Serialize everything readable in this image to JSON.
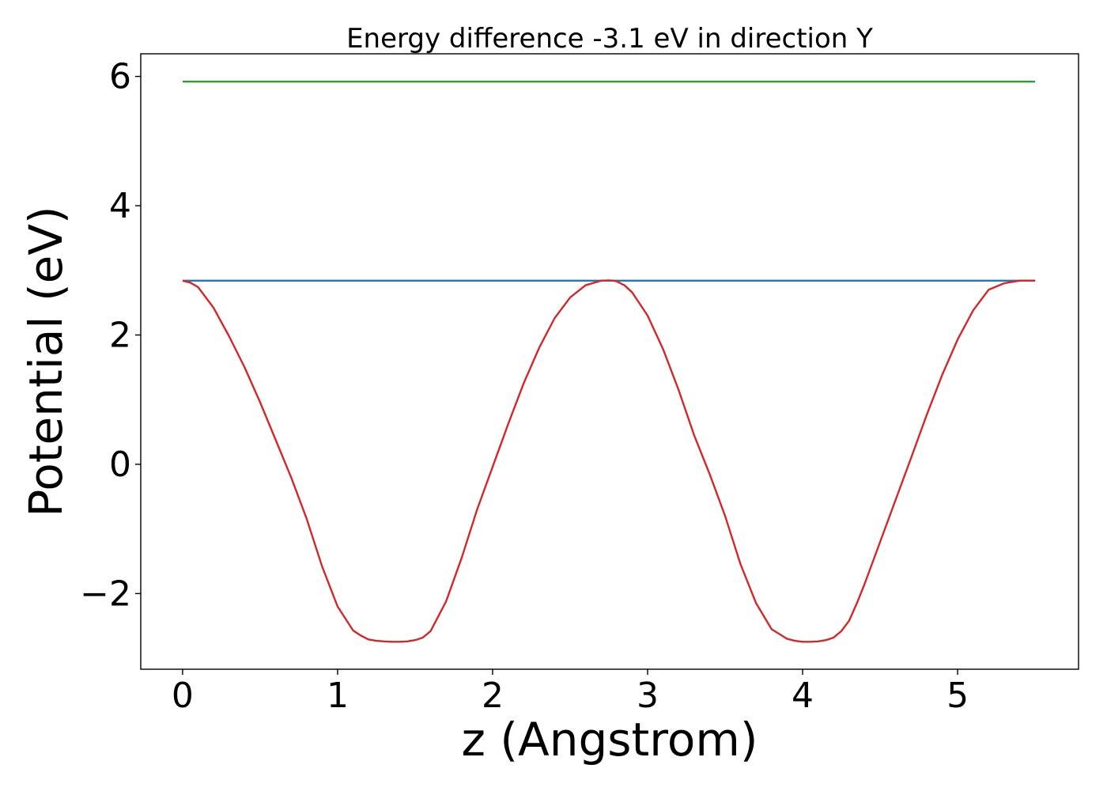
{
  "chart_data": {
    "type": "line",
    "title": "Energy difference -3.1 eV in direction Y",
    "xlabel": "z (Angstrom)",
    "ylabel": "Potential (eV)",
    "xlim": [
      -0.27,
      5.78
    ],
    "ylim": [
      -3.17,
      6.35
    ],
    "xticks": [
      0,
      1,
      2,
      3,
      4,
      5
    ],
    "xtick_labels": [
      "0",
      "1",
      "2",
      "3",
      "4",
      "5"
    ],
    "yticks": [
      -2,
      0,
      2,
      4,
      6
    ],
    "ytick_labels": [
      "−2",
      "0",
      "2",
      "4",
      "6"
    ],
    "grid": false,
    "series": [
      {
        "color": "#2ca02c",
        "x": [
          0,
          5.5
        ],
        "y": [
          5.92,
          5.92
        ]
      },
      {
        "color": "#1f77b4",
        "x": [
          0,
          5.5
        ],
        "y": [
          2.84,
          2.84
        ]
      },
      {
        "color": "#d62728",
        "x": [
          0,
          0.05,
          0.1,
          0.2,
          0.3,
          0.4,
          0.5,
          0.6,
          0.7,
          0.8,
          0.9,
          1.0,
          1.1,
          1.15,
          1.2,
          1.25,
          1.3,
          1.35,
          1.4,
          1.45,
          1.5,
          1.55,
          1.6,
          1.7,
          1.8,
          1.9,
          2.0,
          2.1,
          2.2,
          2.3,
          2.4,
          2.5,
          2.6,
          2.7,
          2.75,
          2.78,
          2.8,
          2.85,
          2.9,
          3.0,
          3.1,
          3.2,
          3.3,
          3.4,
          3.5,
          3.6,
          3.7,
          3.8,
          3.9,
          3.95,
          4.0,
          4.05,
          4.1,
          4.15,
          4.2,
          4.25,
          4.3,
          4.35,
          4.4,
          4.5,
          4.6,
          4.7,
          4.8,
          4.9,
          5.0,
          5.1,
          5.2,
          5.3,
          5.4,
          5.45,
          5.5
        ],
        "y": [
          2.84,
          2.81,
          2.74,
          2.42,
          1.98,
          1.5,
          0.96,
          0.38,
          -0.2,
          -0.84,
          -1.58,
          -2.2,
          -2.57,
          -2.65,
          -2.71,
          -2.73,
          -2.74,
          -2.745,
          -2.745,
          -2.74,
          -2.72,
          -2.68,
          -2.58,
          -2.12,
          -1.45,
          -0.7,
          -0.04,
          0.62,
          1.25,
          1.8,
          2.26,
          2.58,
          2.77,
          2.84,
          2.845,
          2.84,
          2.83,
          2.77,
          2.66,
          2.3,
          1.78,
          1.15,
          0.45,
          -0.15,
          -0.8,
          -1.55,
          -2.15,
          -2.55,
          -2.7,
          -2.73,
          -2.745,
          -2.745,
          -2.74,
          -2.72,
          -2.68,
          -2.58,
          -2.42,
          -2.15,
          -1.85,
          -1.2,
          -0.55,
          0.1,
          0.76,
          1.38,
          1.93,
          2.38,
          2.7,
          2.8,
          2.84,
          2.84,
          2.84
        ]
      }
    ]
  }
}
